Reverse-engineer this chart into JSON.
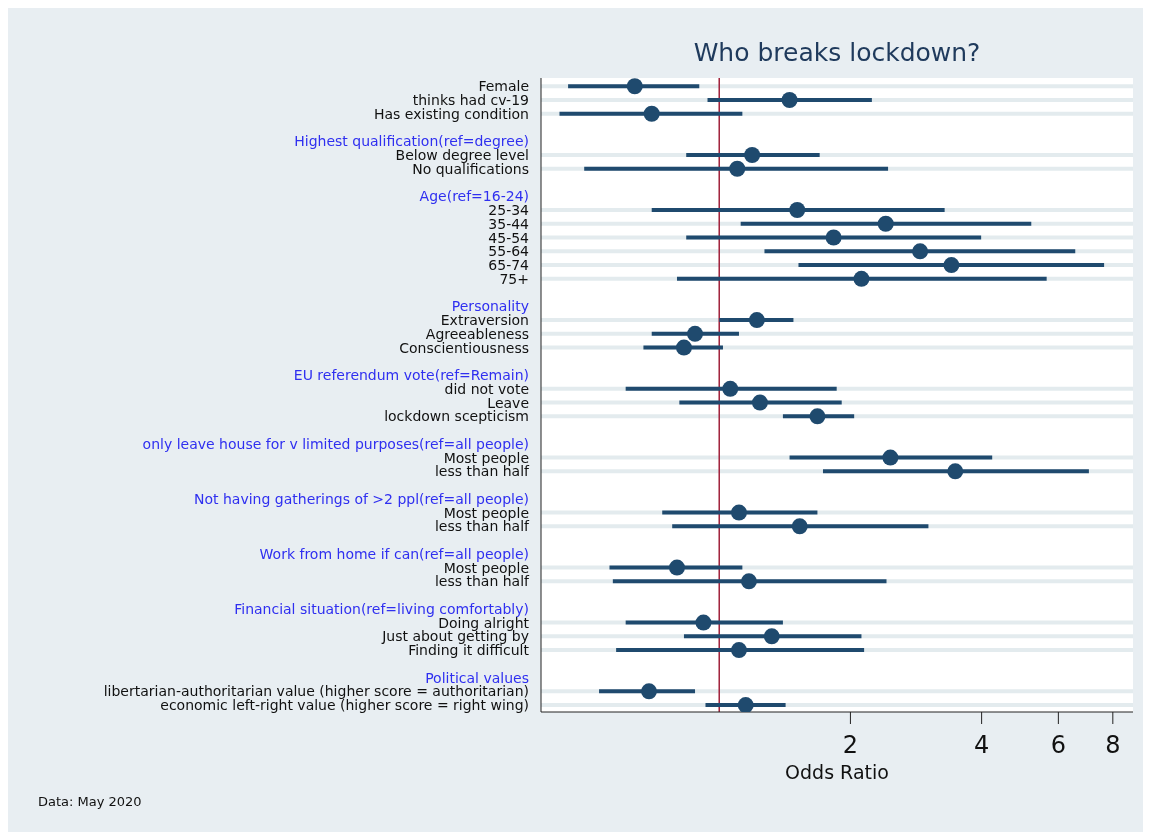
{
  "chart_data": {
    "type": "scatter",
    "title": "Who breaks lockdown?",
    "xlabel": "Odds Ratio",
    "categories": [
      "Female",
      "thinks had cv-19",
      "Has existing condition",
      null,
      "Highest qualification(ref=degree)",
      "Below degree level",
      "No qualifications",
      null,
      "Age(ref=16-24)",
      "25-34",
      "35-44",
      "45-54",
      "55-64",
      "65-74",
      "75+",
      null,
      "Personality",
      "Extraversion",
      "Agreeableness",
      "Conscientiousness",
      null,
      "EU referendum vote(ref=Remain)",
      "did not vote",
      "Leave",
      "lockdown scepticism",
      null,
      "only leave house for v limited purposes(ref=all people)",
      "Most people",
      "less than half",
      null,
      "Not having gatherings of >2 ppl(ref=all people)",
      "Most people",
      "less than half",
      null,
      "Work from home if can(ref=all people)",
      "Most people",
      "less than half",
      null,
      "Financial situation(ref=living comfortably)",
      "Doing alright",
      "Just about getting by",
      "Finding it difficult",
      null,
      "Political values",
      "libertarian-authoritarian value (higher score = authoritarian)",
      "economic left-right value (higher score = right wing)"
    ],
    "series": [
      {
        "color": "#1f4a6e",
        "values": [
          0.64,
          1.45,
          0.7,
          null,
          null,
          1.19,
          1.1,
          null,
          null,
          1.51,
          2.41,
          1.83,
          2.89,
          3.41,
          2.12,
          null,
          null,
          1.22,
          0.88,
          0.83,
          null,
          null,
          1.06,
          1.24,
          1.68,
          null,
          null,
          2.47,
          3.48,
          null,
          null,
          1.11,
          1.53,
          null,
          null,
          0.8,
          1.17,
          null,
          null,
          0.92,
          1.32,
          1.11,
          null,
          null,
          0.69,
          1.15
        ],
        "errors": [
          [
            0.45,
            0.9
          ],
          [
            0.94,
            2.24
          ],
          [
            0.43,
            1.13
          ],
          null,
          null,
          [
            0.84,
            1.7
          ],
          [
            0.49,
            2.44
          ],
          null,
          null,
          [
            0.7,
            3.29
          ],
          [
            1.12,
            5.2
          ],
          [
            0.84,
            3.99
          ],
          [
            1.27,
            6.56
          ],
          [
            1.52,
            7.64
          ],
          [
            0.8,
            5.64
          ],
          null,
          null,
          [
            1.0,
            1.48
          ],
          [
            0.7,
            1.11
          ],
          [
            0.67,
            1.02
          ],
          null,
          null,
          [
            0.61,
            1.86
          ],
          [
            0.81,
            1.91
          ],
          [
            1.4,
            2.04
          ],
          null,
          null,
          [
            1.45,
            4.23
          ],
          [
            1.73,
            7.05
          ],
          null,
          null,
          [
            0.74,
            1.68
          ],
          [
            0.78,
            3.02
          ],
          null,
          null,
          [
            0.56,
            1.13
          ],
          [
            0.57,
            2.42
          ],
          null,
          null,
          [
            0.61,
            1.4
          ],
          [
            0.83,
            2.12
          ],
          [
            0.58,
            2.15
          ],
          null,
          null,
          [
            0.53,
            0.88
          ],
          [
            0.93,
            1.42
          ]
        ]
      }
    ],
    "log": "x",
    "xlim": [
      0.39,
      8.9
    ],
    "xticks": [
      2,
      4,
      6,
      8
    ],
    "ref_lines": [
      {
        "axis": "x",
        "value": 1,
        "color": "#a0203a"
      }
    ],
    "orientation": "horizontal",
    "grid": "y",
    "marker": "circle",
    "annotations": [
      "Data: May 2020"
    ]
  }
}
